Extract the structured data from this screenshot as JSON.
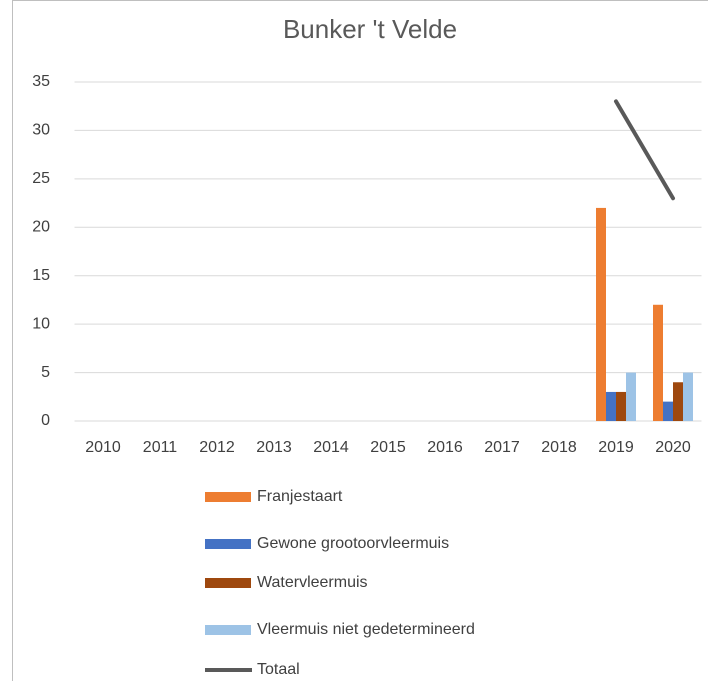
{
  "chart_data": {
    "type": "bar",
    "title": "Bunker 't Velde",
    "categories": [
      "2010",
      "2011",
      "2012",
      "2013",
      "2014",
      "2015",
      "2016",
      "2017",
      "2018",
      "2019",
      "2020"
    ],
    "series": [
      {
        "name": "Franjestaart",
        "color": "#ed7d31",
        "values": [
          null,
          null,
          null,
          null,
          null,
          null,
          null,
          null,
          null,
          22,
          12
        ]
      },
      {
        "name": "Gewone grootoorvleermuis",
        "color": "#4472c4",
        "values": [
          null,
          null,
          null,
          null,
          null,
          null,
          null,
          null,
          null,
          3,
          2
        ]
      },
      {
        "name": "Watervleermuis",
        "color": "#9e480e",
        "values": [
          null,
          null,
          null,
          null,
          null,
          null,
          null,
          null,
          null,
          3,
          4
        ]
      },
      {
        "name": "Vleermuis niet gedetermineerd",
        "color": "#9dc3e6",
        "values": [
          null,
          null,
          null,
          null,
          null,
          null,
          null,
          null,
          null,
          5,
          5
        ]
      },
      {
        "name": "Totaal",
        "type": "line",
        "color": "#595959",
        "values": [
          null,
          null,
          null,
          null,
          null,
          null,
          null,
          null,
          null,
          33,
          23
        ]
      }
    ],
    "ylim": [
      0,
      35
    ],
    "yticks": [
      0,
      5,
      10,
      15,
      20,
      25,
      30,
      35
    ],
    "grid": true,
    "legend": "bottom"
  }
}
